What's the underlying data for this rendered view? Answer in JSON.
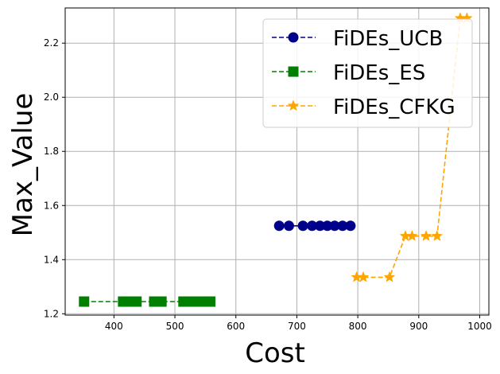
{
  "chart_data": {
    "type": "line",
    "title": "",
    "xlabel": "Cost",
    "ylabel": "Max_Value",
    "xlim": [
      320,
      1015
    ],
    "ylim": [
      1.195,
      2.33
    ],
    "xticks": [
      400,
      500,
      600,
      700,
      800,
      900,
      1000
    ],
    "yticks": [
      1.2,
      1.4,
      1.6,
      1.8,
      2.0,
      2.2
    ],
    "xtick_labels": [
      "400",
      "500",
      "600",
      "700",
      "800",
      "900",
      "1000"
    ],
    "ytick_labels": [
      "1.2",
      "1.4",
      "1.6",
      "1.8",
      "2.0",
      "2.2"
    ],
    "grid": true,
    "legend_position": "top-right",
    "series": [
      {
        "name": "FiDEs_UCB",
        "color": "#00008b",
        "marker": "circle",
        "x": [
          671,
          687,
          710,
          725,
          738,
          750,
          762,
          775,
          788
        ],
        "y": [
          1.525,
          1.525,
          1.525,
          1.525,
          1.525,
          1.525,
          1.525,
          1.525,
          1.525
        ]
      },
      {
        "name": "FiDEs_ES",
        "color": "#008000",
        "marker": "square",
        "x": [
          351,
          415,
          427,
          437,
          466,
          478,
          514,
          527,
          540,
          552,
          558
        ],
        "y": [
          1.245,
          1.245,
          1.245,
          1.245,
          1.245,
          1.245,
          1.245,
          1.245,
          1.245,
          1.245,
          1.245
        ]
      },
      {
        "name": "FiDEs_CFKG",
        "color": "#ffa500",
        "marker": "star",
        "x": [
          798,
          809,
          852,
          878,
          889,
          912,
          930,
          968,
          979
        ],
        "y": [
          1.335,
          1.335,
          1.335,
          1.487,
          1.487,
          1.487,
          1.487,
          2.292,
          2.292
        ]
      }
    ]
  }
}
